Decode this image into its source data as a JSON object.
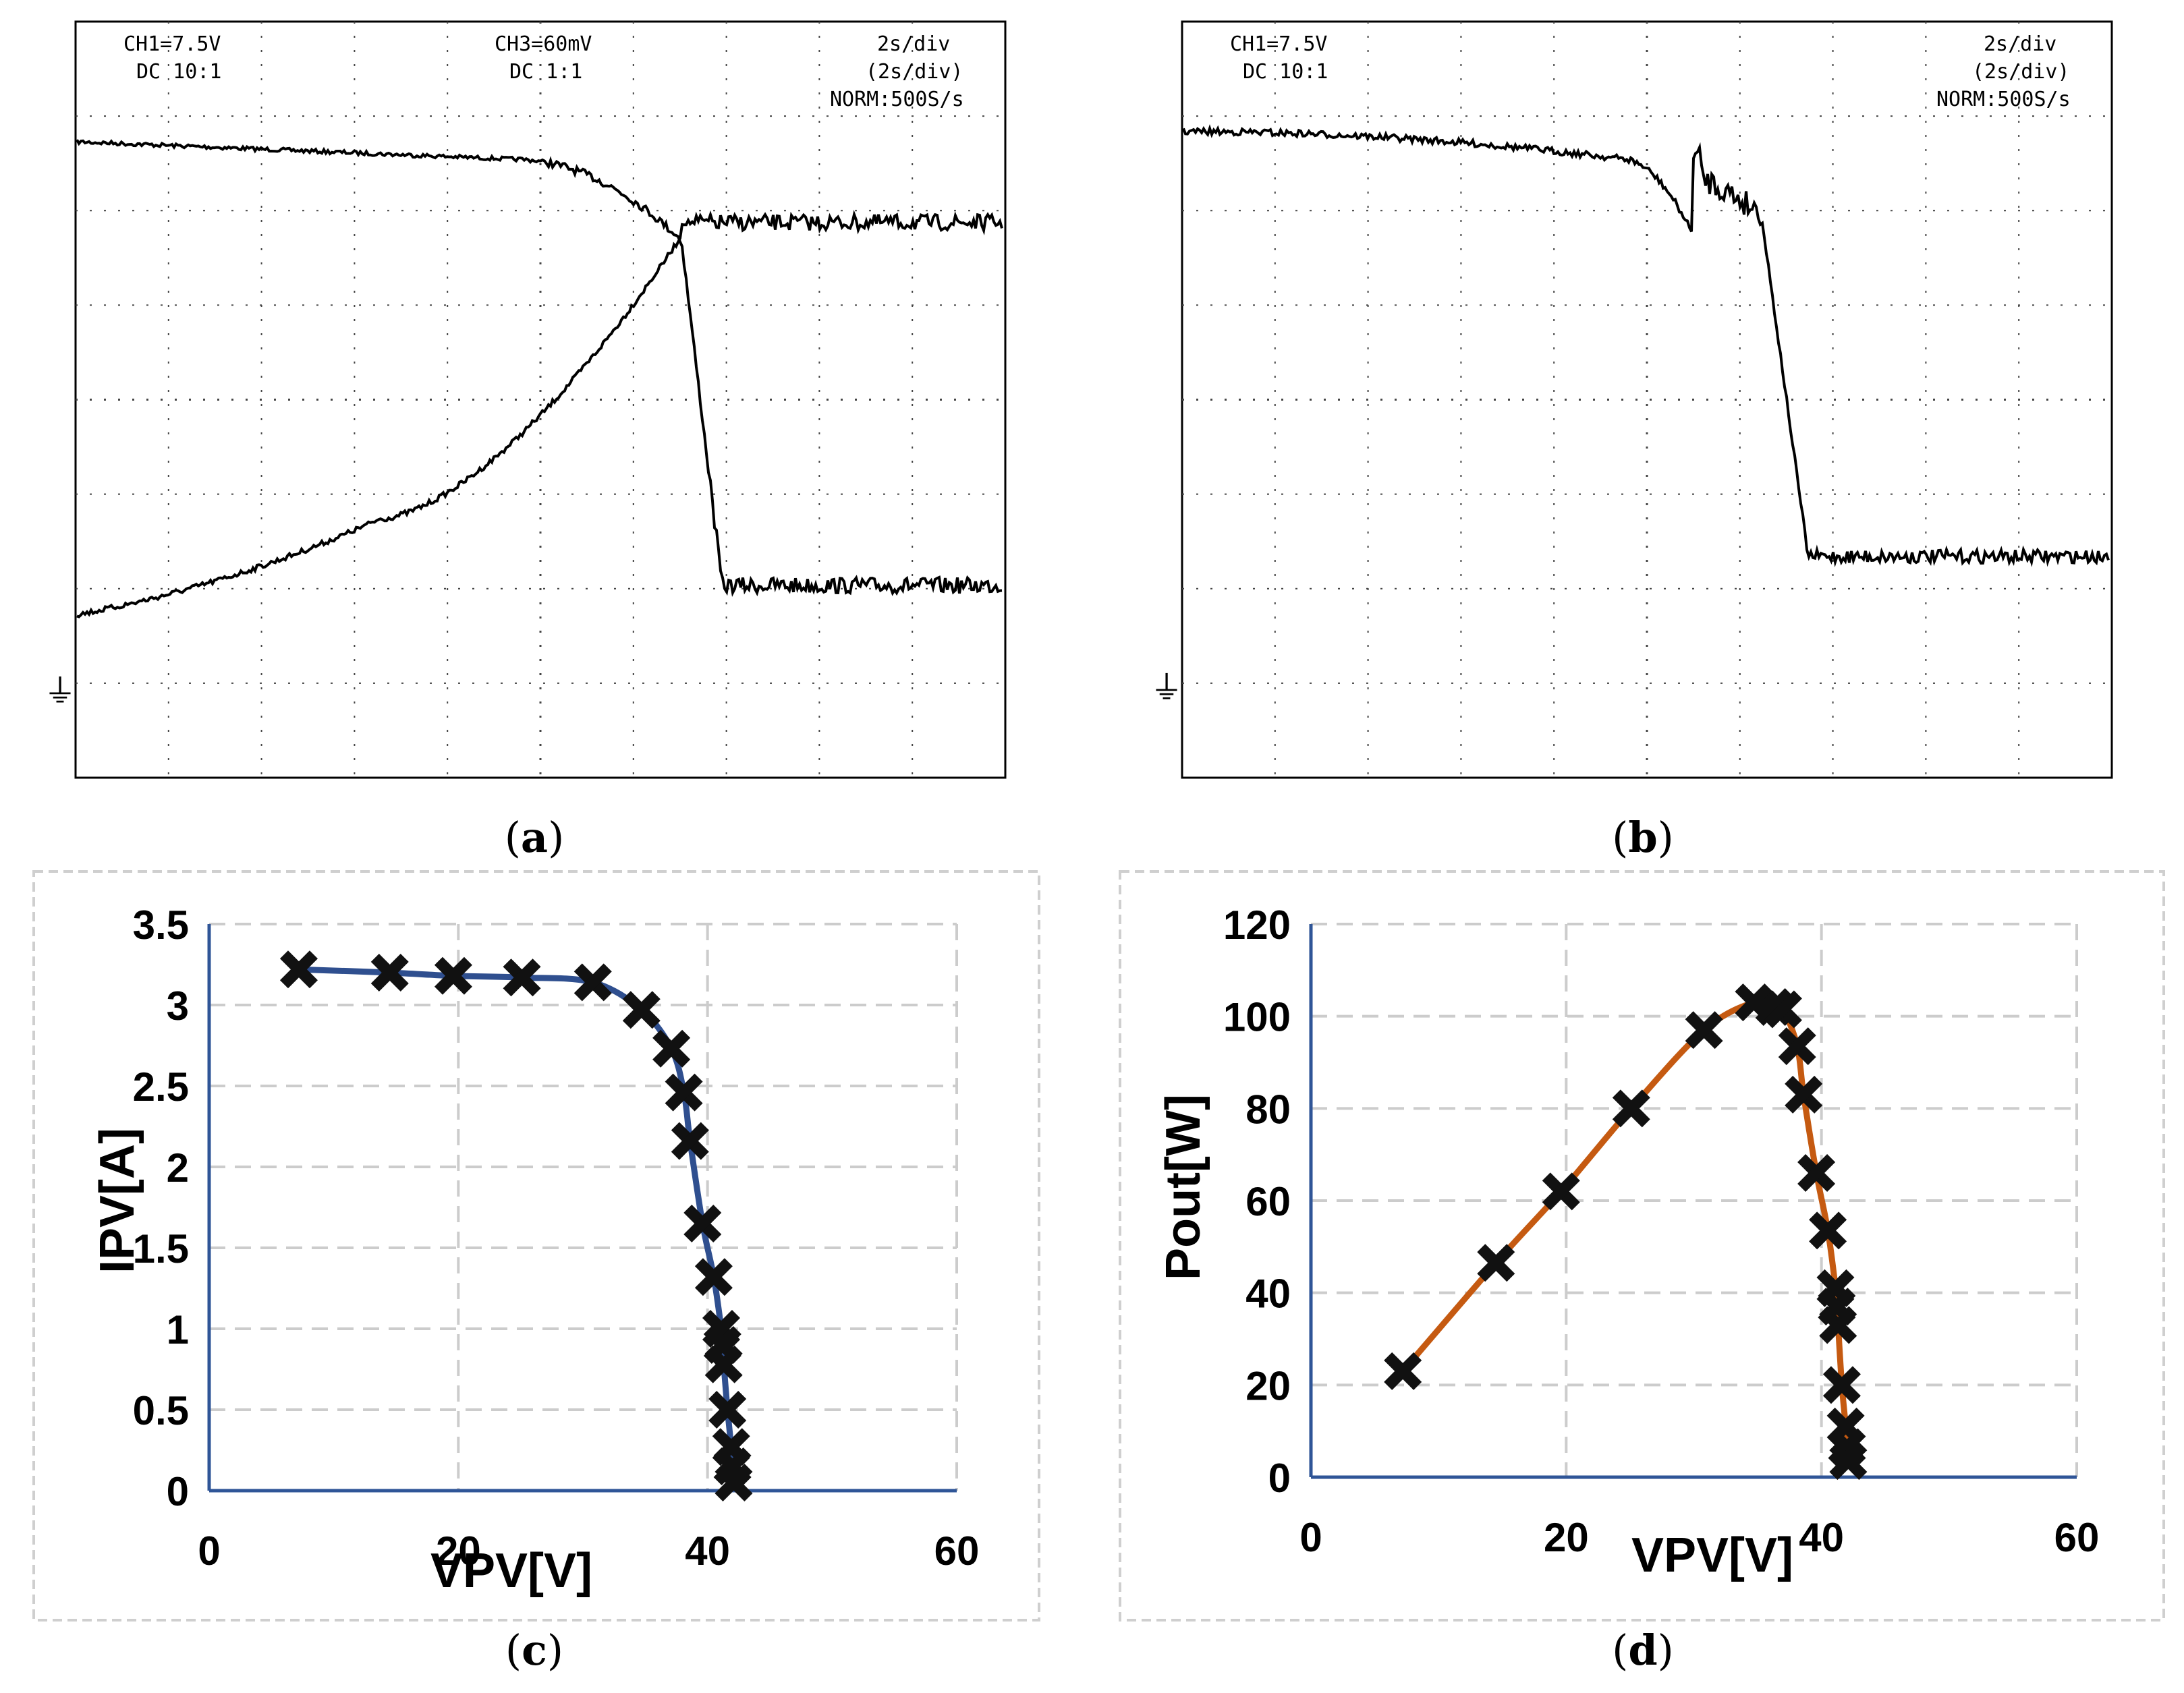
{
  "captions": {
    "a": "a",
    "b": "b",
    "c": "c",
    "d": "d"
  },
  "oscilloscope_a": {
    "ch1": "CH1=7.5V",
    "ch1_coupling": "DC  10:1",
    "ch3": "CH3=60mV",
    "ch3_coupling": "DC  1:1",
    "timebase": "2s/div",
    "timebase2": "(2s/div)",
    "mode": "NORM:500S/s",
    "ground_marker": "⏚"
  },
  "oscilloscope_b": {
    "ch1": "CH1=7.5V",
    "ch1_coupling": "DC  10:1",
    "timebase": "2s/div",
    "timebase2": "(2s/div)",
    "mode": "NORM:500S/s",
    "ground_marker": "⏚"
  },
  "colors": {
    "iv_line": "#2f4f8f",
    "pv_line": "#c55a11",
    "marker": "#111111",
    "axis": "#2f5597",
    "grid": "#cccccc"
  },
  "chart_data": [
    {
      "type": "line",
      "panel": "c",
      "xlabel": "VPV[V]",
      "ylabel": "IPV[A]",
      "xlim": [
        0,
        60
      ],
      "ylim": [
        0,
        3.5
      ],
      "xticks": [
        "0",
        "20",
        "40",
        "60"
      ],
      "yticks": [
        "0",
        "0.5",
        "1",
        "1.5",
        "2",
        "2.5",
        "3",
        "3.5"
      ],
      "x": [
        7.2,
        14.5,
        19.6,
        25.1,
        30.8,
        34.7,
        37.1,
        38.1,
        38.6,
        39.6,
        40.5,
        41.1,
        41.2,
        41.3,
        41.6,
        41.9,
        42.0,
        42.1
      ],
      "y": [
        3.22,
        3.2,
        3.18,
        3.17,
        3.14,
        2.97,
        2.73,
        2.46,
        2.16,
        1.65,
        1.32,
        1.0,
        0.9,
        0.78,
        0.5,
        0.27,
        0.15,
        0.05
      ]
    },
    {
      "type": "line",
      "panel": "d",
      "xlabel": "VPV[V]",
      "ylabel": "Pout[W]",
      "xlim": [
        0,
        60
      ],
      "ylim": [
        0,
        120
      ],
      "xticks": [
        "0",
        "20",
        "40",
        "60"
      ],
      "yticks": [
        "0",
        "20",
        "40",
        "60",
        "80",
        "100",
        "120"
      ],
      "x": [
        7.2,
        14.5,
        19.6,
        25.1,
        30.8,
        34.7,
        36.3,
        37.0,
        38.1,
        38.6,
        39.6,
        40.5,
        41.1,
        41.2,
        41.3,
        41.6,
        41.9,
        42.0,
        42.1
      ],
      "y": [
        23,
        46.5,
        62,
        80,
        97,
        103,
        102,
        101.5,
        93.5,
        83,
        66,
        53.5,
        41,
        37,
        33,
        20,
        11,
        6.5,
        3.5
      ]
    }
  ]
}
